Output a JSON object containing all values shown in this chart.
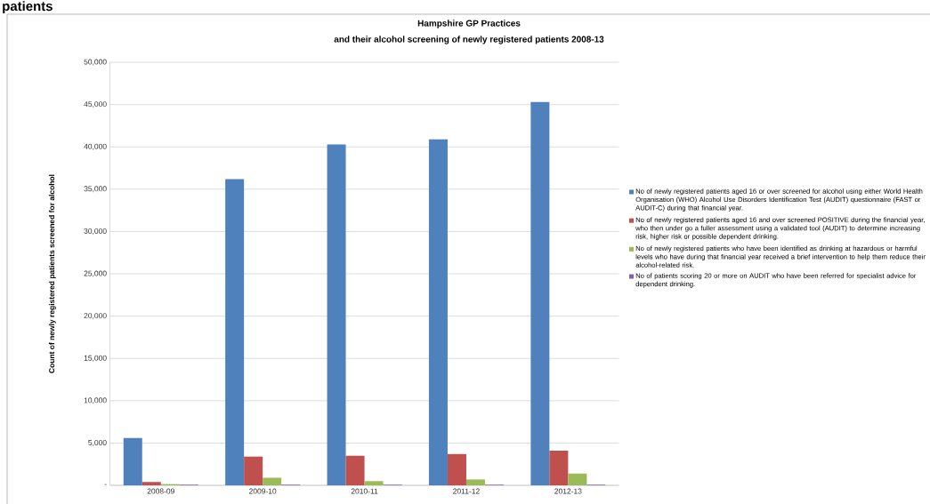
{
  "chart_data": {
    "type": "bar",
    "title": "Hampshire GP Practices",
    "subtitle": "and their alcohol screening of newly registered patients 2008-13",
    "ylabel": "Count of newly registered patients screened for alcohol",
    "annotations": [
      "patients"
    ],
    "categories": [
      "2008-09",
      "2009-10",
      "2010-11",
      "2011-12",
      "2012-13"
    ],
    "series": [
      {
        "name": "No of newly registered patients aged 16 or over screened for alcohol using either World Health Organisation (WHO) Alcohol Use Disorders Identification Test (AUDIT) questionnaire (FAST or AUDIT-C) during that financial year.",
        "color": "#4f81bd",
        "values": [
          5600,
          36200,
          40300,
          40900,
          45300
        ]
      },
      {
        "name": "No of newly registered patients aged 16 and over screened POSITIVE during the financial year, who then under go a fuller assessment using a validated tool (AUDIT) to determine increasing risk, higher risk or possible dependent drinking.",
        "color": "#c0504d",
        "values": [
          400,
          3400,
          3500,
          3700,
          4100
        ]
      },
      {
        "name": "No of newly registered patients who have been identified as drinking at hazardous or harmful levels who have during that financial year received a brief intervention to help them reduce their alcohol-related risk.",
        "color": "#9bbb59",
        "values": [
          150,
          900,
          500,
          700,
          1400
        ]
      },
      {
        "name": "No of  patients scoring 20 or more on AUDIT  who have been referred for specialist advice for dependent drinking.",
        "color": "#8064a2",
        "values": [
          80,
          80,
          80,
          80,
          80
        ]
      }
    ],
    "ylim": [
      0,
      50000
    ],
    "yticks": [
      {
        "value": 0,
        "label": "-"
      },
      {
        "value": 5000,
        "label": "5,000"
      },
      {
        "value": 10000,
        "label": "10,000"
      },
      {
        "value": 15000,
        "label": "15,000"
      },
      {
        "value": 20000,
        "label": "20,000"
      },
      {
        "value": 25000,
        "label": "25,000"
      },
      {
        "value": 30000,
        "label": "30,000"
      },
      {
        "value": 35000,
        "label": "35,000"
      },
      {
        "value": 40000,
        "label": "40,000"
      },
      {
        "value": 45000,
        "label": "45,000"
      },
      {
        "value": 50000,
        "label": "50,000"
      }
    ],
    "grid": "y",
    "legend": "right"
  }
}
